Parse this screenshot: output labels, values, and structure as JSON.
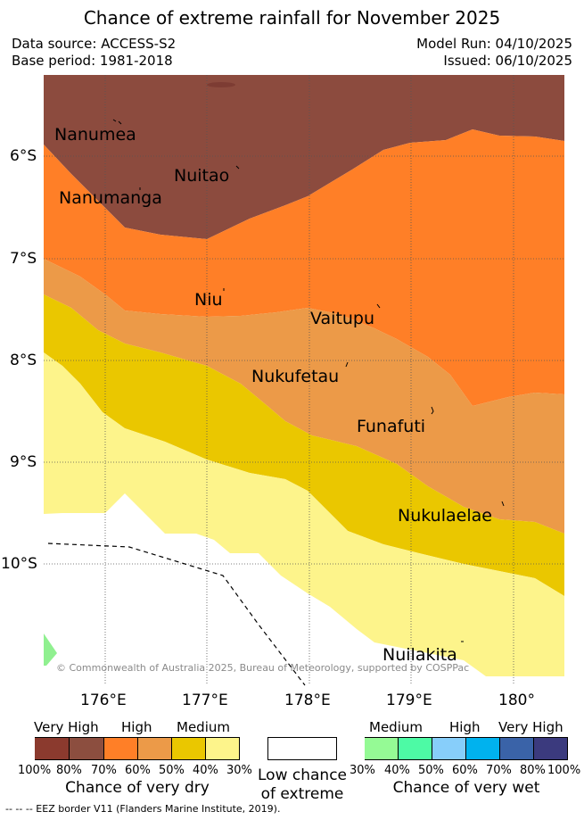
{
  "title": "Chance of extreme rainfall for November 2025",
  "meta": {
    "data_source": "Data source: ACCESS-S2",
    "base_period": "Base period: 1981-2018",
    "model_run": "Model Run: 04/10/2025",
    "issued": "Issued: 06/10/2025"
  },
  "map": {
    "latitude_labels": [
      "6°S",
      "7°S",
      "8°S",
      "9°S",
      "10°S"
    ],
    "longitude_labels": [
      "176°E",
      "177°E",
      "178°E",
      "179°E",
      "180°"
    ],
    "places": [
      "Nanumea",
      "Nuitao",
      "Nanumanga",
      "Niu",
      "Vaitupu",
      "Nukufetau",
      "Funafuti",
      "Nukulaelae",
      "Nuilakita"
    ],
    "copyright": "© Commonwealth of Australia 2025, Bureau of Meteorology, supported by COSPPac",
    "zone_colors": {
      "very_high_dry": "#8c4b3e",
      "high_dry": "#ff7f27",
      "mid_dry": "#ec9a48",
      "medium_dry": "#eac700",
      "low_dry": "#fdf48b",
      "low_chance": "#ffffff",
      "medium_wet": "#90f090"
    }
  },
  "legend": {
    "dry": {
      "headers": [
        "Very High",
        "High",
        "Medium"
      ],
      "percents": [
        "100%",
        "80%",
        "70%",
        "60%",
        "50%",
        "40%",
        "30%"
      ],
      "colors": [
        "#8b3a2e",
        "#8c4e3f",
        "#ff7f27",
        "#ec9a48",
        "#eac700",
        "#fdf48b"
      ],
      "label": "Chance of very dry"
    },
    "neutral": {
      "label_line1": "Low chance",
      "label_line2": "of extreme"
    },
    "wet": {
      "headers": [
        "Medium",
        "High",
        "Very High"
      ],
      "percents": [
        "30%",
        "40%",
        "50%",
        "60%",
        "70%",
        "80%",
        "100%"
      ],
      "colors": [
        "#95fa95",
        "#4dfaa5",
        "#87cefa",
        "#00b2ee",
        "#3a63a8",
        "#3b3a7e"
      ],
      "label": "Chance of very wet"
    }
  },
  "footnote": "-- -- -- EEZ border V11 (Flanders Marine Institute, 2019)."
}
